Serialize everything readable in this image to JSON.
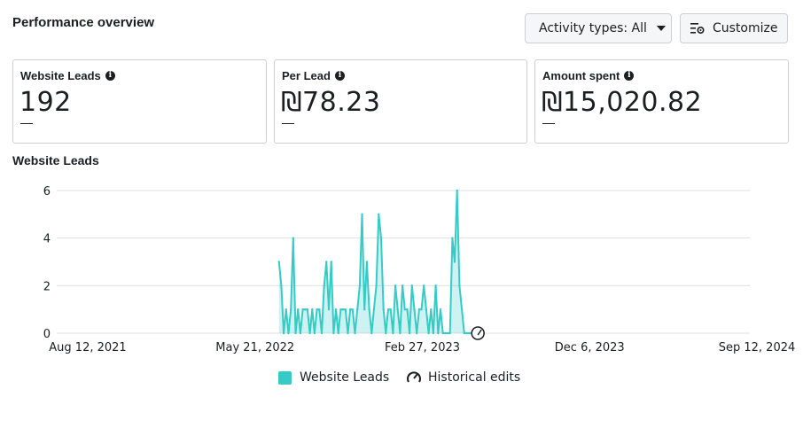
{
  "header": {
    "title": "Performance overview",
    "activity_button": "Activity types: All",
    "customize_button": "Customize"
  },
  "cards": [
    {
      "label": "Website Leads",
      "value": "192",
      "delta": "—"
    },
    {
      "label": "Per Lead",
      "value": "₪78.23",
      "delta": "—"
    },
    {
      "label": "Amount spent",
      "value": "₪15,020.82",
      "delta": "—"
    }
  ],
  "colors": {
    "series": "#36cbc6",
    "grid": "#dddfe2",
    "text": "#1c1e21"
  },
  "chart_data": {
    "type": "area",
    "title": "Website Leads",
    "xlabel": "",
    "ylabel": "",
    "ylim": [
      0,
      6
    ],
    "yticks": [
      "0",
      "2",
      "4",
      "6"
    ],
    "xticks": [
      "Aug 12, 2021",
      "May 21, 2022",
      "Feb 27, 2023",
      "Dec 6, 2023",
      "Sep 12, 2024"
    ],
    "xlim": [
      "2021-08-12",
      "2024-09-12"
    ],
    "series": [
      {
        "name": "Website Leads",
        "x": [
          "2022-07-12",
          "2022-07-16",
          "2022-07-20",
          "2022-07-24",
          "2022-07-28",
          "2022-08-01",
          "2022-08-05",
          "2022-08-09",
          "2022-08-13",
          "2022-08-17",
          "2022-08-21",
          "2022-08-25",
          "2022-08-29",
          "2022-09-02",
          "2022-09-06",
          "2022-09-10",
          "2022-09-14",
          "2022-09-18",
          "2022-09-22",
          "2022-09-26",
          "2022-09-30",
          "2022-10-04",
          "2022-10-08",
          "2022-10-12",
          "2022-10-16",
          "2022-10-20",
          "2022-10-24",
          "2022-10-28",
          "2022-11-01",
          "2022-11-05",
          "2022-11-09",
          "2022-11-13",
          "2022-11-17",
          "2022-11-21",
          "2022-11-25",
          "2022-11-29",
          "2022-12-03",
          "2022-12-07",
          "2022-12-11",
          "2022-12-15",
          "2022-12-19",
          "2022-12-23",
          "2022-12-27",
          "2022-12-31",
          "2023-01-04",
          "2023-01-08",
          "2023-01-12",
          "2023-01-16",
          "2023-01-20",
          "2023-01-24",
          "2023-01-28",
          "2023-02-01",
          "2023-02-05",
          "2023-02-09",
          "2023-02-13",
          "2023-02-17",
          "2023-02-21",
          "2023-02-25",
          "2023-03-01",
          "2023-03-05",
          "2023-03-09",
          "2023-03-13",
          "2023-03-17",
          "2023-03-21",
          "2023-03-25",
          "2023-03-29",
          "2023-04-02",
          "2023-04-06",
          "2023-04-10",
          "2023-04-14",
          "2023-04-18",
          "2023-04-22",
          "2023-04-26",
          "2023-04-30",
          "2023-05-04",
          "2023-05-08",
          "2023-05-12",
          "2023-05-16",
          "2023-05-20",
          "2023-05-24",
          "2023-05-28",
          "2023-06-01",
          "2023-06-05",
          "2023-06-09",
          "2023-06-13",
          "2023-06-17"
        ],
        "values": [
          3,
          2,
          0,
          1,
          0,
          1,
          4,
          0,
          1,
          0,
          1,
          1,
          1,
          0,
          1,
          0,
          1,
          1,
          0,
          2,
          3,
          1,
          3,
          0,
          1,
          0,
          1,
          1,
          1,
          0,
          1,
          1,
          0,
          1,
          2,
          5,
          1,
          3,
          1,
          0,
          1,
          2,
          5,
          4,
          1,
          0,
          1,
          1,
          0,
          2,
          1,
          0,
          2,
          1,
          1,
          0,
          2,
          1,
          0,
          1,
          1,
          2,
          1,
          0,
          1,
          0,
          2,
          0,
          1,
          0,
          0,
          0,
          0,
          4,
          3,
          6,
          2,
          1,
          0,
          0,
          0,
          0,
          0,
          0,
          0,
          0
        ]
      }
    ],
    "annotations": [
      {
        "type": "historical-edit",
        "x": "2023-06-12"
      }
    ]
  },
  "legend": {
    "series_label": "Website Leads",
    "edits_label": "Historical edits"
  }
}
